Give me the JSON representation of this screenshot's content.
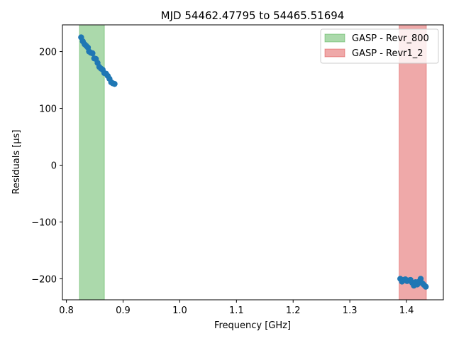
{
  "chart_data": {
    "type": "scatter",
    "title": "MJD 54462.47795 to 54465.51694",
    "xlabel": "Frequency [GHz]",
    "ylabel": "Residuals [μs]",
    "xlim": [
      0.793,
      1.465
    ],
    "ylim": [
      -237,
      247
    ],
    "xticks": [
      0.8,
      0.9,
      1.0,
      1.1,
      1.2,
      1.3,
      1.4
    ],
    "xtick_labels": [
      "0.8",
      "0.9",
      "1.0",
      "1.1",
      "1.2",
      "1.3",
      "1.4"
    ],
    "yticks": [
      -200,
      -100,
      0,
      100,
      200
    ],
    "ytick_labels": [
      "−200",
      "−100",
      "0",
      "100",
      "200"
    ],
    "grid": false,
    "legend_position": "top-right",
    "bands": [
      {
        "name": "GASP - Revr_800",
        "x0": 0.823,
        "x1": 0.867,
        "color": "#2ca02c"
      },
      {
        "name": "GASP - Revr1_2",
        "x0": 1.387,
        "x1": 1.435,
        "color": "#d62728"
      }
    ],
    "series": [
      {
        "marker_color": "#1f77b4",
        "x": [
          0.826,
          0.829,
          0.832,
          0.835,
          0.838,
          0.84,
          0.843,
          0.846,
          0.849,
          0.852,
          0.855,
          0.858,
          0.861,
          0.864,
          0.867,
          0.87,
          0.873,
          0.876,
          0.879,
          0.882,
          0.885,
          1.389,
          1.392,
          1.395,
          1.398,
          1.401,
          1.404,
          1.407,
          1.41,
          1.413,
          1.416,
          1.419,
          1.422,
          1.425,
          1.428,
          1.431,
          1.434
        ],
        "y": [
          225,
          218,
          213,
          210,
          207,
          200,
          198,
          197,
          188,
          187,
          180,
          173,
          170,
          168,
          162,
          161,
          157,
          152,
          146,
          144,
          143,
          -200,
          -205,
          -202,
          -201,
          -204,
          -203,
          -202,
          -207,
          -212,
          -206,
          -210,
          -205,
          -200,
          -208,
          -211,
          -214
        ]
      }
    ]
  }
}
